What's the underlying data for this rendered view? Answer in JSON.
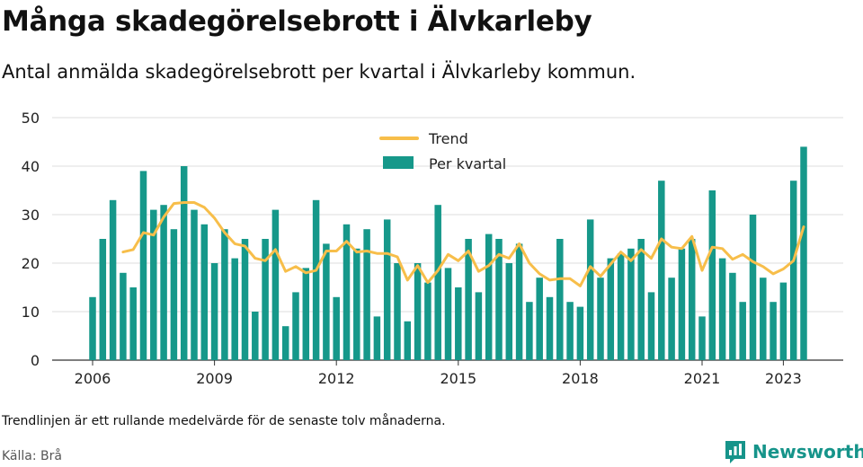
{
  "header": {
    "title": "Många skadegörelsebrott i Älvkarleby",
    "subtitle": "Antal anmälda skadegörelsebrott per kvartal i Älvkarleby kommun."
  },
  "footer": {
    "note": "Trendlinjen är ett rullande medelvärde för de senaste tolv månaderna.",
    "source": "Källa: Brå",
    "logo_text": "Newsworthy"
  },
  "colors": {
    "bar": "#16988a",
    "trend": "#f7be4a",
    "grid": "#dddddd",
    "brand": "#16948a"
  },
  "chart_data": {
    "type": "bar",
    "title": "Många skadegörelsebrott i Älvkarleby",
    "subtitle": "Antal anmälda skadegörelsebrott per kvartal i Älvkarleby kommun.",
    "ylim": [
      0,
      50
    ],
    "yticks": [
      0,
      10,
      20,
      30,
      40,
      50
    ],
    "x_tick_labels": [
      "2006",
      "2009",
      "2012",
      "2015",
      "2018",
      "2021",
      "2023"
    ],
    "x_tick_years": [
      2006,
      2009,
      2012,
      2015,
      2018,
      2021,
      2023
    ],
    "start_year": 2006,
    "grid": true,
    "legend_position": "top-center",
    "series": [
      {
        "name": "Per kvartal",
        "type": "bar",
        "values": [
          13,
          25,
          33,
          18,
          15,
          39,
          31,
          32,
          27,
          40,
          31,
          28,
          20,
          27,
          21,
          25,
          10,
          25,
          31,
          7,
          14,
          19,
          33,
          24,
          13,
          28,
          23,
          27,
          9,
          29,
          20,
          8,
          20,
          16,
          32,
          19,
          15,
          25,
          14,
          26,
          25,
          20,
          24,
          12,
          17,
          13,
          25,
          12,
          11,
          29,
          17,
          21,
          22,
          23,
          25,
          14,
          37,
          17,
          23,
          25,
          9,
          35,
          21,
          18,
          12,
          30,
          17,
          12,
          16,
          37,
          44
        ]
      },
      {
        "name": "Trend",
        "type": "line",
        "start_index": 3,
        "values": [
          22.3,
          22.8,
          26.3,
          25.8,
          29.5,
          32.3,
          32.5,
          32.5,
          31.5,
          29.3,
          26.3,
          24,
          23.5,
          21,
          20.5,
          22.8,
          18.3,
          19.3,
          18,
          18.5,
          22.5,
          22.5,
          24.5,
          22.3,
          22.5,
          22,
          22,
          21.3,
          16.5,
          19.5,
          16,
          18.5,
          21.8,
          20.5,
          22.5,
          18.3,
          19.5,
          21.8,
          21,
          24,
          20,
          17.8,
          16.5,
          16.8,
          16.8,
          15.3,
          19.3,
          17.3,
          19.8,
          22.3,
          20.5,
          22.8,
          21,
          25,
          23.3,
          23,
          25.5,
          18.5,
          23.3,
          23,
          20.8,
          21.8,
          20.3,
          19.3,
          17.8,
          18.8,
          20.5,
          27.5
        ]
      }
    ]
  }
}
